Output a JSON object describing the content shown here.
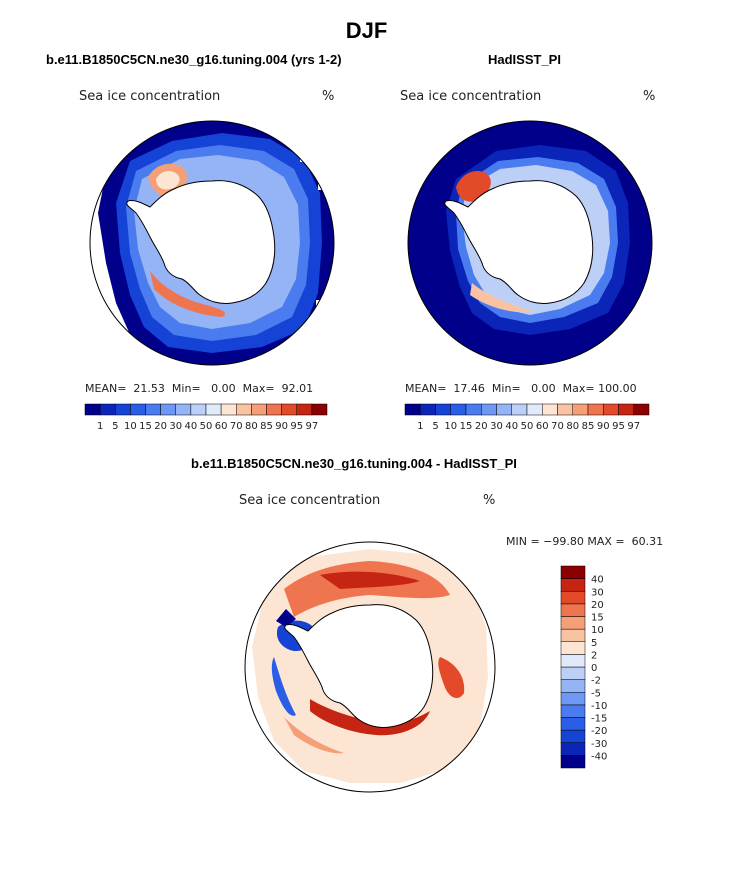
{
  "figure": {
    "title": "DJF",
    "diff_title": "b.e11.B1850C5CN.ne30_g16.tuning.004 - HadISST_PI"
  },
  "panels": [
    {
      "id": "model",
      "title": "b.e11.B1850C5CN.ne30_g16.tuning.004 (yrs 1-2)",
      "variable": "Sea ice concentration",
      "units": "%",
      "mean_label": "MEAN=",
      "mean": "21.53",
      "min_label": "Min=",
      "min": "0.00",
      "max_label": "Max=",
      "max": "92.01"
    },
    {
      "id": "obs",
      "title": "HadISST_PI",
      "variable": "Sea ice concentration",
      "units": "%",
      "mean_label": "MEAN=",
      "mean": "17.46",
      "min_label": "Min=",
      "min": "0.00",
      "max_label": "Max=",
      "max": "100.00"
    }
  ],
  "diff_panel": {
    "variable": "Sea ice concentration",
    "units": "%",
    "minmax_text": "MIN = −99.80 MAX =  60.31"
  },
  "chart_data": [
    {
      "type": "heatmap",
      "title": "b.e11.B1850C5CN.ne30_g16.tuning.004 (yrs 1-2)",
      "projection": "south-polar-stereographic",
      "variable": "Sea ice concentration (%)",
      "contour_levels": [
        1,
        5,
        10,
        15,
        20,
        30,
        40,
        50,
        60,
        70,
        80,
        85,
        90,
        95,
        97
      ],
      "mean": 21.53,
      "min": 0.0,
      "max": 92.01,
      "colors": [
        "#00008b",
        "#0a25b8",
        "#1443d6",
        "#2a5ee8",
        "#4a7cf0",
        "#6f98f4",
        "#95b4f6",
        "#bcd0f7",
        "#e1eafb",
        "#fde5d3",
        "#f9c3a3",
        "#f59f78",
        "#ef7550",
        "#e24a2a",
        "#c62513",
        "#8b0000"
      ]
    },
    {
      "type": "heatmap",
      "title": "HadISST_PI",
      "projection": "south-polar-stereographic",
      "variable": "Sea ice concentration (%)",
      "contour_levels": [
        1,
        5,
        10,
        15,
        20,
        30,
        40,
        50,
        60,
        70,
        80,
        85,
        90,
        95,
        97
      ],
      "mean": 17.46,
      "min": 0.0,
      "max": 100.0,
      "colors": [
        "#00008b",
        "#0a25b8",
        "#1443d6",
        "#2a5ee8",
        "#4a7cf0",
        "#6f98f4",
        "#95b4f6",
        "#bcd0f7",
        "#e1eafb",
        "#fde5d3",
        "#f9c3a3",
        "#f59f78",
        "#ef7550",
        "#e24a2a",
        "#c62513",
        "#8b0000"
      ]
    },
    {
      "type": "heatmap",
      "title": "b.e11.B1850C5CN.ne30_g16.tuning.004 - HadISST_PI",
      "projection": "south-polar-stereographic",
      "variable": "Sea ice concentration difference (%)",
      "contour_levels": [
        -40,
        -30,
        -20,
        -15,
        -10,
        -5,
        -2,
        0,
        2,
        5,
        10,
        15,
        20,
        30,
        40
      ],
      "min": -99.8,
      "max": 60.31,
      "colors": [
        "#00008b",
        "#0a25b8",
        "#1443d6",
        "#2a5ee8",
        "#4a7cf0",
        "#6f98f4",
        "#95b4f6",
        "#bcd0f7",
        "#e1eafb",
        "#fde5d3",
        "#f9c3a3",
        "#f59f78",
        "#ef7550",
        "#e24a2a",
        "#c62513",
        "#8b0000"
      ]
    }
  ]
}
